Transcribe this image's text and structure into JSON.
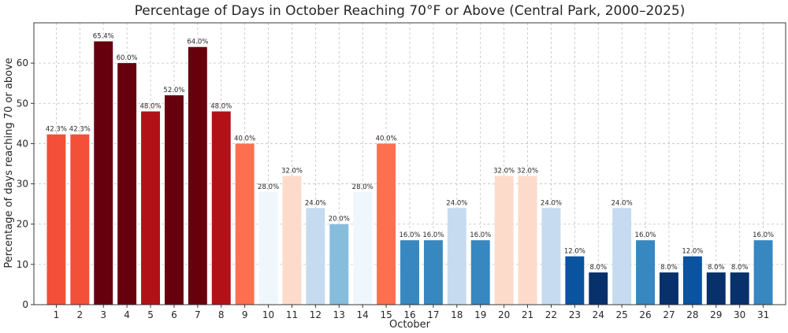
{
  "chart_data": {
    "type": "bar",
    "title": "Percentage of Days in October Reaching 70°F or Above (Central Park, 2000–2025)",
    "xlabel": "October",
    "ylabel": "Percentage of days reaching 70 or above",
    "ylim": [
      0,
      70
    ],
    "yticks": [
      0,
      10,
      20,
      30,
      40,
      50,
      60
    ],
    "grid": true,
    "categories": [
      "1",
      "2",
      "3",
      "4",
      "5",
      "6",
      "7",
      "8",
      "9",
      "10",
      "11",
      "12",
      "13",
      "14",
      "15",
      "16",
      "17",
      "18",
      "19",
      "20",
      "21",
      "22",
      "23",
      "24",
      "25",
      "26",
      "27",
      "28",
      "29",
      "30",
      "31"
    ],
    "values": [
      42.3,
      42.3,
      65.4,
      60.0,
      48.0,
      52.0,
      64.0,
      48.0,
      40.0,
      28.0,
      32.0,
      24.0,
      20.0,
      28.0,
      40.0,
      16.0,
      16.0,
      24.0,
      16.0,
      32.0,
      32.0,
      24.0,
      12.0,
      8.0,
      24.0,
      16.0,
      8.0,
      12.0,
      8.0,
      8.0,
      16.0
    ],
    "data_labels": [
      "42.3%",
      "42.3%",
      "65.4%",
      "60.0%",
      "48.0%",
      "52.0%",
      "64.0%",
      "48.0%",
      "40.0%",
      "28.0%",
      "32.0%",
      "24.0%",
      "20.0%",
      "28.0%",
      "40.0%",
      "16.0%",
      "16.0%",
      "24.0%",
      "16.0%",
      "32.0%",
      "32.0%",
      "24.0%",
      "12.0%",
      "8.0%",
      "24.0%",
      "16.0%",
      "8.0%",
      "12.0%",
      "8.0%",
      "8.0%",
      "16.0%"
    ],
    "colors": [
      "#f44f39",
      "#f44f39",
      "#67000d",
      "#67000d",
      "#b11218",
      "#67000d",
      "#67000d",
      "#b11218",
      "#fc7050",
      "#eff6fc",
      "#fddbcb",
      "#c6dbef",
      "#86bcdc",
      "#eff6fc",
      "#fc7050",
      "#3787c0",
      "#3787c0",
      "#c6dbef",
      "#3787c0",
      "#fddbcb",
      "#fddbcb",
      "#c6dbef",
      "#0a539e",
      "#08306b",
      "#c6dbef",
      "#3787c0",
      "#08306b",
      "#0a539e",
      "#08306b",
      "#08306b",
      "#3787c0"
    ]
  }
}
